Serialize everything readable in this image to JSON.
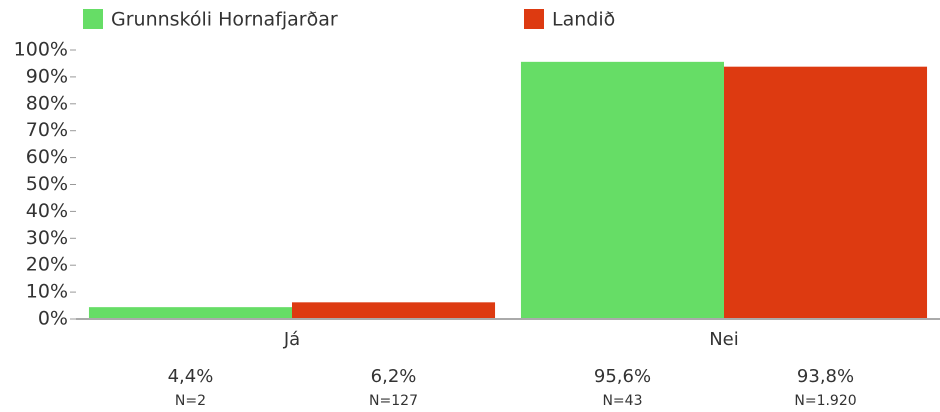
{
  "chart_data": {
    "type": "bar",
    "categories": [
      "Já",
      "Nei"
    ],
    "series": [
      {
        "name": "Grunnskóli Hornafjarðar",
        "color": "#66dd66",
        "values": [
          4.4,
          95.6
        ],
        "value_labels": [
          "4,4%",
          "95,6%"
        ],
        "n_labels": [
          "N=2",
          "N=43"
        ]
      },
      {
        "name": "Landið",
        "color": "#dd3a11",
        "values": [
          6.2,
          93.8
        ],
        "value_labels": [
          "6,2%",
          "93,8%"
        ],
        "n_labels": [
          "N=127",
          "N=1.920"
        ]
      }
    ],
    "ylim": [
      0,
      100
    ],
    "yticks": [
      {
        "value": 0,
        "label": "0%"
      },
      {
        "value": 10,
        "label": "10%"
      },
      {
        "value": 20,
        "label": "20%"
      },
      {
        "value": 30,
        "label": "30%"
      },
      {
        "value": 40,
        "label": "40%"
      },
      {
        "value": 50,
        "label": "50%"
      },
      {
        "value": 60,
        "label": "60%"
      },
      {
        "value": 70,
        "label": "70%"
      },
      {
        "value": 80,
        "label": "80%"
      },
      {
        "value": 90,
        "label": "90%"
      },
      {
        "value": 100,
        "label": "100%"
      }
    ],
    "grid": false
  }
}
